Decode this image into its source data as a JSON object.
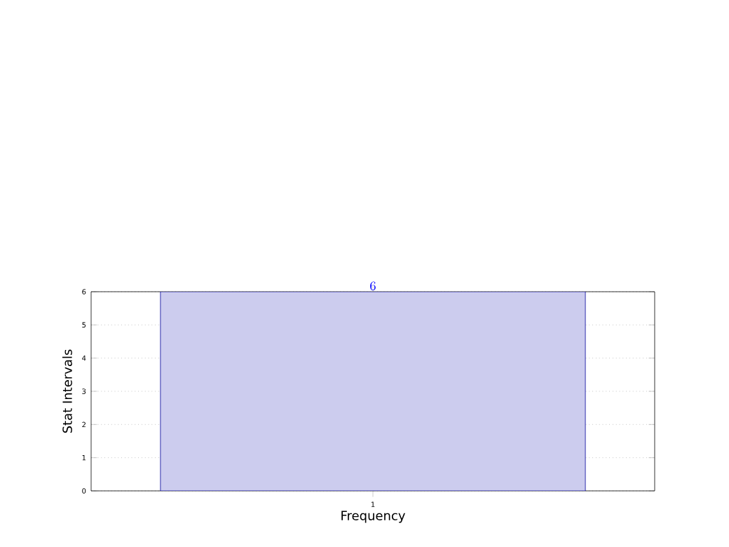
{
  "chart_data": {
    "type": "bar",
    "xlabel": "Frequency",
    "ylabel": "Stat Intervals",
    "categories": [
      "1"
    ],
    "values": [
      6
    ],
    "color": "#ccccee",
    "ylim": [
      0,
      6
    ],
    "yticks": [
      0,
      1,
      2,
      3,
      4,
      5,
      6
    ],
    "grid": true,
    "data_labels": true
  }
}
